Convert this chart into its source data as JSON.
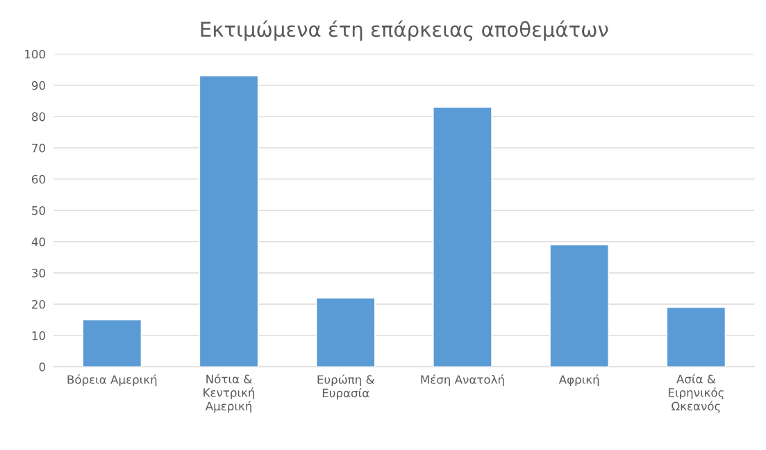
{
  "chart_data": {
    "type": "bar",
    "title": "Εκτιμώμενα έτη επάρκειας αποθεμάτων",
    "categories": [
      "Βόρεια Αμερική",
      "Νότια & Κεντρική Αμερική",
      "Ευρώπη & Ευρασία",
      "Μέση Ανατολή",
      "Αφρική",
      "Ασία & Ειρηνικός Ωκεανός"
    ],
    "values": [
      15,
      93,
      22,
      83,
      39,
      19
    ],
    "color": "#5b9bd5",
    "ylim": [
      0,
      100
    ],
    "yticks": [
      0,
      10,
      20,
      30,
      40,
      50,
      60,
      70,
      80,
      90,
      100
    ],
    "grid": "y"
  }
}
